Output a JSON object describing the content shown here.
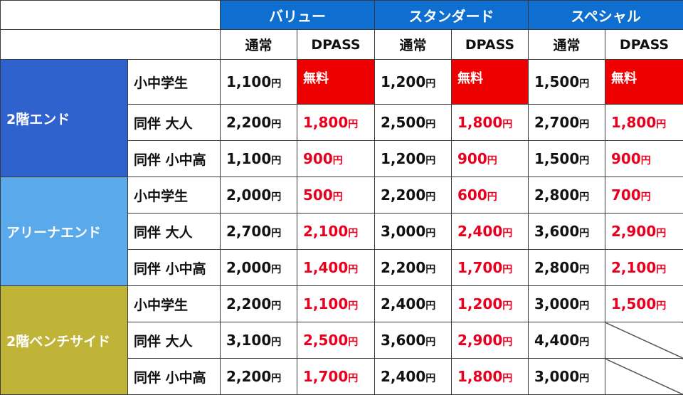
{
  "header": {
    "plans": [
      "バリュー",
      "スタンダード",
      "スペシャル"
    ],
    "sub": [
      "通常",
      "DPASS",
      "通常",
      "DPASS",
      "通常",
      "DPASS"
    ]
  },
  "colors": {
    "plan_header": "#0f6fd0",
    "zone_2f_end": "#2f62cc",
    "zone_arena_end": "#5aa9ea",
    "zone_2f_bench": "#bfb437",
    "dpass_text": "#e8001e",
    "free_bg": "#ee0000"
  },
  "zones": [
    {
      "name": "2階エンド",
      "rows": [
        {
          "cat": "小中学生",
          "vals": [
            [
              "1,100",
              "円"
            ],
            [
              "無料",
              ""
            ],
            [
              "1,200",
              "円"
            ],
            [
              "無料",
              ""
            ],
            [
              "1,500",
              "円"
            ],
            [
              "無料",
              ""
            ]
          ]
        },
        {
          "cat": "同伴 大人",
          "vals": [
            [
              "2,200",
              "円"
            ],
            [
              "1,800",
              "円"
            ],
            [
              "2,500",
              "円"
            ],
            [
              "1,800",
              "円"
            ],
            [
              "2,700",
              "円"
            ],
            [
              "1,800",
              "円"
            ]
          ]
        },
        {
          "cat": "同伴 小中高",
          "vals": [
            [
              "1,100",
              "円"
            ],
            [
              "900",
              "円"
            ],
            [
              "1,200",
              "円"
            ],
            [
              "900",
              "円"
            ],
            [
              "1,500",
              "円"
            ],
            [
              "900",
              "円"
            ]
          ]
        }
      ]
    },
    {
      "name": "アリーナエンド",
      "rows": [
        {
          "cat": "小中学生",
          "vals": [
            [
              "2,000",
              "円"
            ],
            [
              "500",
              "円"
            ],
            [
              "2,200",
              "円"
            ],
            [
              "600",
              "円"
            ],
            [
              "2,800",
              "円"
            ],
            [
              "700",
              "円"
            ]
          ]
        },
        {
          "cat": "同伴 大人",
          "vals": [
            [
              "2,700",
              "円"
            ],
            [
              "2,100",
              "円"
            ],
            [
              "3,000",
              "円"
            ],
            [
              "2,400",
              "円"
            ],
            [
              "3,600",
              "円"
            ],
            [
              "2,900",
              "円"
            ]
          ]
        },
        {
          "cat": "同伴 小中高",
          "vals": [
            [
              "2,000",
              "円"
            ],
            [
              "1,400",
              "円"
            ],
            [
              "2,200",
              "円"
            ],
            [
              "1,700",
              "円"
            ],
            [
              "2,800",
              "円"
            ],
            [
              "2,100",
              "円"
            ]
          ]
        }
      ]
    },
    {
      "name": "2階ベンチサイド",
      "rows": [
        {
          "cat": "小中学生",
          "vals": [
            [
              "2,200",
              "円"
            ],
            [
              "1,100",
              "円"
            ],
            [
              "2,400",
              "円"
            ],
            [
              "1,200",
              "円"
            ],
            [
              "3,000",
              "円"
            ],
            [
              "1,500",
              "円"
            ]
          ]
        },
        {
          "cat": "同伴 大人",
          "vals": [
            [
              "3,100",
              "円"
            ],
            [
              "2,500",
              "円"
            ],
            [
              "3,600",
              "円"
            ],
            [
              "2,900",
              "円"
            ],
            [
              "4,400",
              "円"
            ],
            [
              "",
              ""
            ]
          ]
        },
        {
          "cat": "同伴 小中高",
          "vals": [
            [
              "2,200",
              "円"
            ],
            [
              "1,700",
              "円"
            ],
            [
              "2,400",
              "円"
            ],
            [
              "1,800",
              "円"
            ],
            [
              "3,000",
              "円"
            ],
            [
              "",
              ""
            ]
          ]
        }
      ]
    }
  ]
}
